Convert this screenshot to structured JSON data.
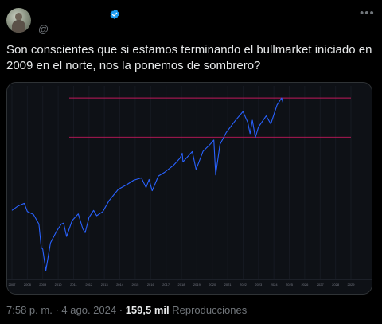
{
  "tweet": {
    "display_name": "",
    "handle": "@",
    "text": "Son conscientes que si estamos terminando el bullmarket iniciado en 2009 en el norte, nos la ponemos de sombrero?",
    "time": "7:58 p. m.",
    "separator": "·",
    "date": "4 ago. 2024",
    "views_count": "159,5 mil",
    "views_label": "Reproducciones"
  },
  "icons": {
    "verified": "verified-badge-icon",
    "more": "more-options-icon"
  },
  "colors": {
    "background": "#000000",
    "text": "#e7e9ea",
    "muted": "#71767b",
    "verified": "#1d9bf0",
    "chart_line": "#2962ff",
    "chart_hline": "#c2185b"
  },
  "chart_data": {
    "type": "line",
    "x_tick_labels": [
      "2007",
      "2008",
      "2009",
      "2010",
      "2011",
      "2012",
      "2013",
      "2014",
      "2015",
      "2016",
      "2017",
      "2018",
      "2019",
      "2020",
      "2021",
      "2022",
      "2023",
      "2024",
      "2025",
      "2026",
      "2027",
      "2028",
      "2029"
    ],
    "y_log_scale": true,
    "ylim": [
      650,
      6200
    ],
    "series": [
      {
        "values": [
          [
            2007.0,
            1420
          ],
          [
            2007.4,
            1500
          ],
          [
            2007.8,
            1550
          ],
          [
            2008.0,
            1400
          ],
          [
            2008.4,
            1350
          ],
          [
            2008.75,
            1200
          ],
          [
            2008.9,
            900
          ],
          [
            2009.0,
            880
          ],
          [
            2009.2,
            676
          ],
          [
            2009.5,
            950
          ],
          [
            2009.9,
            1100
          ],
          [
            2010.2,
            1200
          ],
          [
            2010.35,
            1215
          ],
          [
            2010.55,
            1030
          ],
          [
            2010.9,
            1250
          ],
          [
            2011.3,
            1360
          ],
          [
            2011.6,
            1130
          ],
          [
            2011.75,
            1080
          ],
          [
            2012.0,
            1300
          ],
          [
            2012.3,
            1420
          ],
          [
            2012.5,
            1330
          ],
          [
            2012.9,
            1400
          ],
          [
            2013.3,
            1600
          ],
          [
            2013.9,
            1840
          ],
          [
            2014.5,
            1960
          ],
          [
            2014.9,
            2060
          ],
          [
            2015.4,
            2120
          ],
          [
            2015.7,
            1880
          ],
          [
            2015.9,
            2080
          ],
          [
            2016.1,
            1810
          ],
          [
            2016.5,
            2170
          ],
          [
            2016.9,
            2270
          ],
          [
            2017.5,
            2480
          ],
          [
            2017.9,
            2700
          ],
          [
            2018.05,
            2870
          ],
          [
            2018.1,
            2580
          ],
          [
            2018.7,
            2930
          ],
          [
            2018.95,
            2350
          ],
          [
            2019.4,
            2940
          ],
          [
            2019.9,
            3230
          ],
          [
            2020.1,
            3380
          ],
          [
            2020.22,
            2200
          ],
          [
            2020.5,
            3200
          ],
          [
            2020.9,
            3700
          ],
          [
            2021.5,
            4300
          ],
          [
            2021.99,
            4800
          ],
          [
            2022.3,
            4200
          ],
          [
            2022.45,
            3660
          ],
          [
            2022.6,
            4310
          ],
          [
            2022.8,
            3490
          ],
          [
            2023.0,
            3970
          ],
          [
            2023.5,
            4550
          ],
          [
            2023.8,
            4120
          ],
          [
            2024.2,
            5200
          ],
          [
            2024.5,
            5670
          ],
          [
            2024.59,
            5350
          ]
        ]
      }
    ],
    "horizontal_levels": [
      5670,
      3500
    ]
  }
}
